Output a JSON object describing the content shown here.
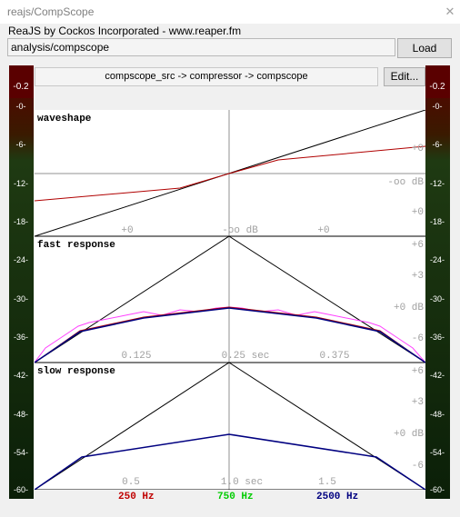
{
  "window": {
    "title": "reajs/CompScope",
    "close_glyph": "✕"
  },
  "header": {
    "effect_name": "ReaJS by Cockos Incorporated - www.reaper.fm"
  },
  "toolbar": {
    "path_value": "analysis/compscope",
    "load_label": "Load"
  },
  "chain": {
    "text": "compscope_src -> compressor -> compscope",
    "edit_label": "Edit..."
  },
  "meters": {
    "left": {
      "peak_readout": "-0.2"
    },
    "right": {
      "peak_readout": "-0.2"
    },
    "scale_labels": [
      "-0-",
      "-6-",
      "-12-",
      "-18-",
      "-24-",
      "-30-",
      "-36-",
      "-42-",
      "-48-",
      "-54-",
      "-60-"
    ]
  },
  "panels": {
    "waveshape": {
      "title": "waveshape",
      "right_labels": [
        "+0",
        "-oo dB",
        "+0"
      ],
      "bottom_labels": [
        "+0",
        "-oo dB",
        "+0"
      ]
    },
    "fast": {
      "title": "fast response",
      "right_labels": [
        "+6",
        "+3",
        "+0 dB",
        "-6"
      ],
      "bottom_labels": [
        "0.125",
        "0.25 sec",
        "0.375"
      ]
    },
    "slow": {
      "title": "slow response",
      "right_labels": [
        "+6",
        "+3",
        "+0 dB",
        "-6"
      ],
      "bottom_labels": [
        "0.5",
        "1.0 sec",
        "1.5"
      ]
    }
  },
  "legend": [
    {
      "label": "250 Hz",
      "color": "#c00000"
    },
    {
      "label": "750 Hz",
      "color": "#00cc00"
    },
    {
      "label": "2500 Hz",
      "color": "#000080"
    }
  ],
  "colors": {
    "meter_green": "#1f3a12",
    "meter_red": "#5a0000",
    "meter_text": "#ffffff",
    "curve_red": "#b00000",
    "curve_blue": "#000080",
    "curve_pink": "#ff40ff",
    "grid_line": "#000000",
    "label_gray": "#a0a0a0"
  }
}
